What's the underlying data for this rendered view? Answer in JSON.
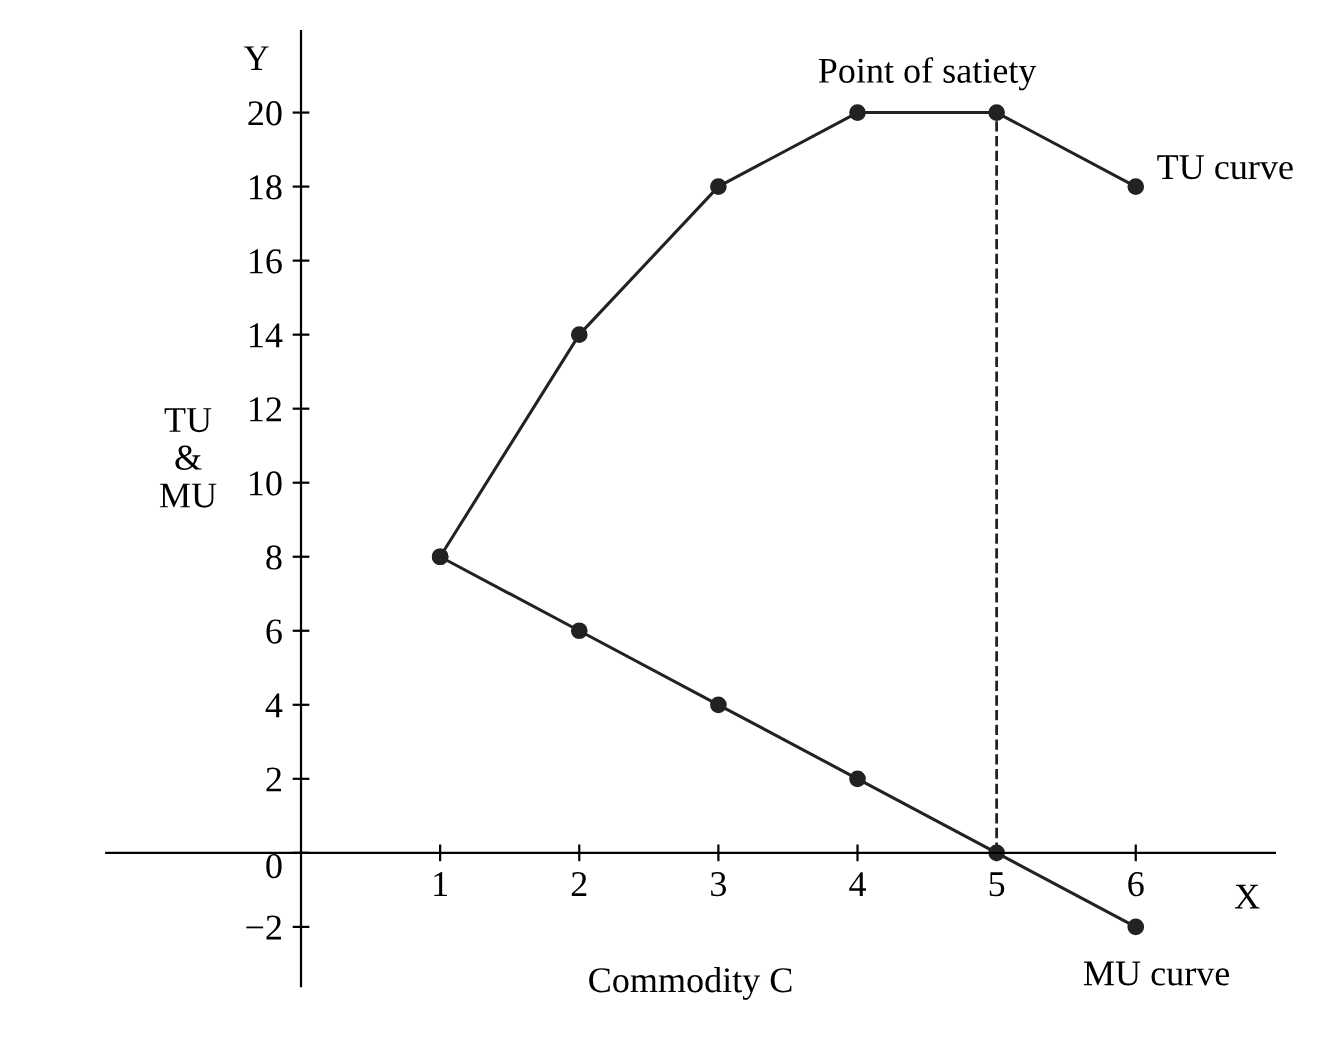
{
  "chart_data": {
    "type": "line",
    "xlabel": "Commodity C",
    "ylabel": "TU\n&\nMU",
    "x": [
      1,
      2,
      3,
      4,
      5,
      6
    ],
    "series": [
      {
        "name": "TU curve",
        "color": "#222222",
        "values": [
          8,
          14,
          18,
          20,
          20,
          18
        ]
      },
      {
        "name": "MU curve",
        "color": "#222222",
        "values": [
          8,
          6,
          4,
          2,
          0,
          -2
        ]
      }
    ],
    "xlim": [
      -1.4,
      7.0
    ],
    "ylim": [
      -3.6,
      22.2
    ],
    "xticks": [
      1,
      2,
      3,
      4,
      5,
      6
    ],
    "yticks": [
      {
        "value": -2,
        "label": "−2"
      },
      {
        "value": 0,
        "label": "0"
      },
      2,
      4,
      6,
      8,
      10,
      12,
      14,
      16,
      18,
      20
    ],
    "ref_lines": [
      {
        "axis": "x",
        "value": 5,
        "label": "Point of satiety",
        "line_style": "dashed",
        "color": "#222222"
      }
    ],
    "annotations": [
      "Y",
      "X"
    ],
    "marker": "circle",
    "line_style": "solid",
    "grid": false,
    "legend": false
  }
}
